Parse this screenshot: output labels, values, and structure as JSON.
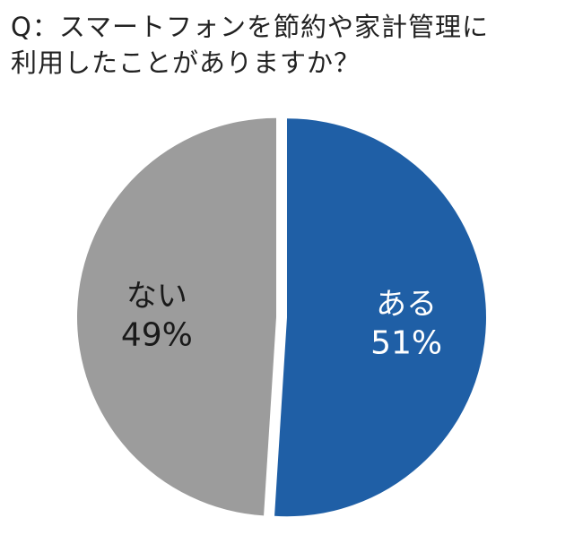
{
  "chart_data": {
    "type": "pie",
    "title_lines": [
      "Q：スマートフォンを節約や家計管理に",
      "利用したことがありますか？"
    ],
    "slices": [
      {
        "label": "ある",
        "value": 51,
        "value_label": "51%",
        "color": "#1f5fa6",
        "label_color": "#ffffff"
      },
      {
        "label": "ない",
        "value": 49,
        "value_label": "49%",
        "color": "#9c9c9c",
        "label_color": "#1a1a1a"
      }
    ]
  }
}
